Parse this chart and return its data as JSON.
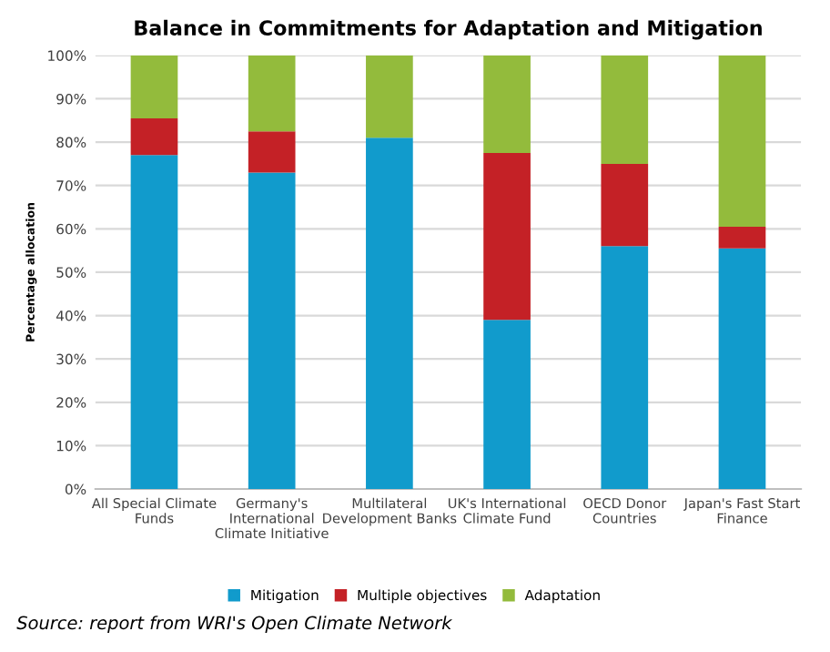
{
  "chart_data": {
    "type": "bar",
    "title": "Balance in Commitments for Adaptation and Mitigation",
    "ylabel": "Percentage allocation",
    "categories": [
      "All Special Climate\nFunds",
      "Germany's\nInternational\nClimate Initiative",
      "Multilateral\nDevelopment Banks",
      "UK's International\nClimate Fund",
      "OECD Donor\nCountries",
      "Japan's Fast Start\nFinance"
    ],
    "series": [
      {
        "name": "Mitigation",
        "color": "#119bcc",
        "values": [
          77,
          73,
          81,
          39,
          56,
          55.5
        ]
      },
      {
        "name": "Multiple objectives",
        "color": "#c42126",
        "values": [
          8.5,
          9.5,
          0,
          38.5,
          19,
          5
        ]
      },
      {
        "name": "Adaptation",
        "color": "#93bb3c",
        "values": [
          14.5,
          17.5,
          19,
          22.5,
          25,
          39.5
        ]
      }
    ],
    "stacked": true,
    "ylim": [
      0,
      100
    ],
    "yticks": [
      {
        "value": 0,
        "label": "0%"
      },
      {
        "value": 10,
        "label": "10%"
      },
      {
        "value": 20,
        "label": "20%"
      },
      {
        "value": 30,
        "label": "30%"
      },
      {
        "value": 40,
        "label": "40%"
      },
      {
        "value": 50,
        "label": "50%"
      },
      {
        "value": 60,
        "label": "60%"
      },
      {
        "value": 70,
        "label": "70%"
      },
      {
        "value": 80,
        "label": "80%"
      },
      {
        "value": 90,
        "label": "90%"
      },
      {
        "value": 100,
        "label": "100%"
      }
    ],
    "grid": "y",
    "legend": "bottom",
    "annotations": [
      "Source: report from WRI's Open Climate Network"
    ]
  }
}
